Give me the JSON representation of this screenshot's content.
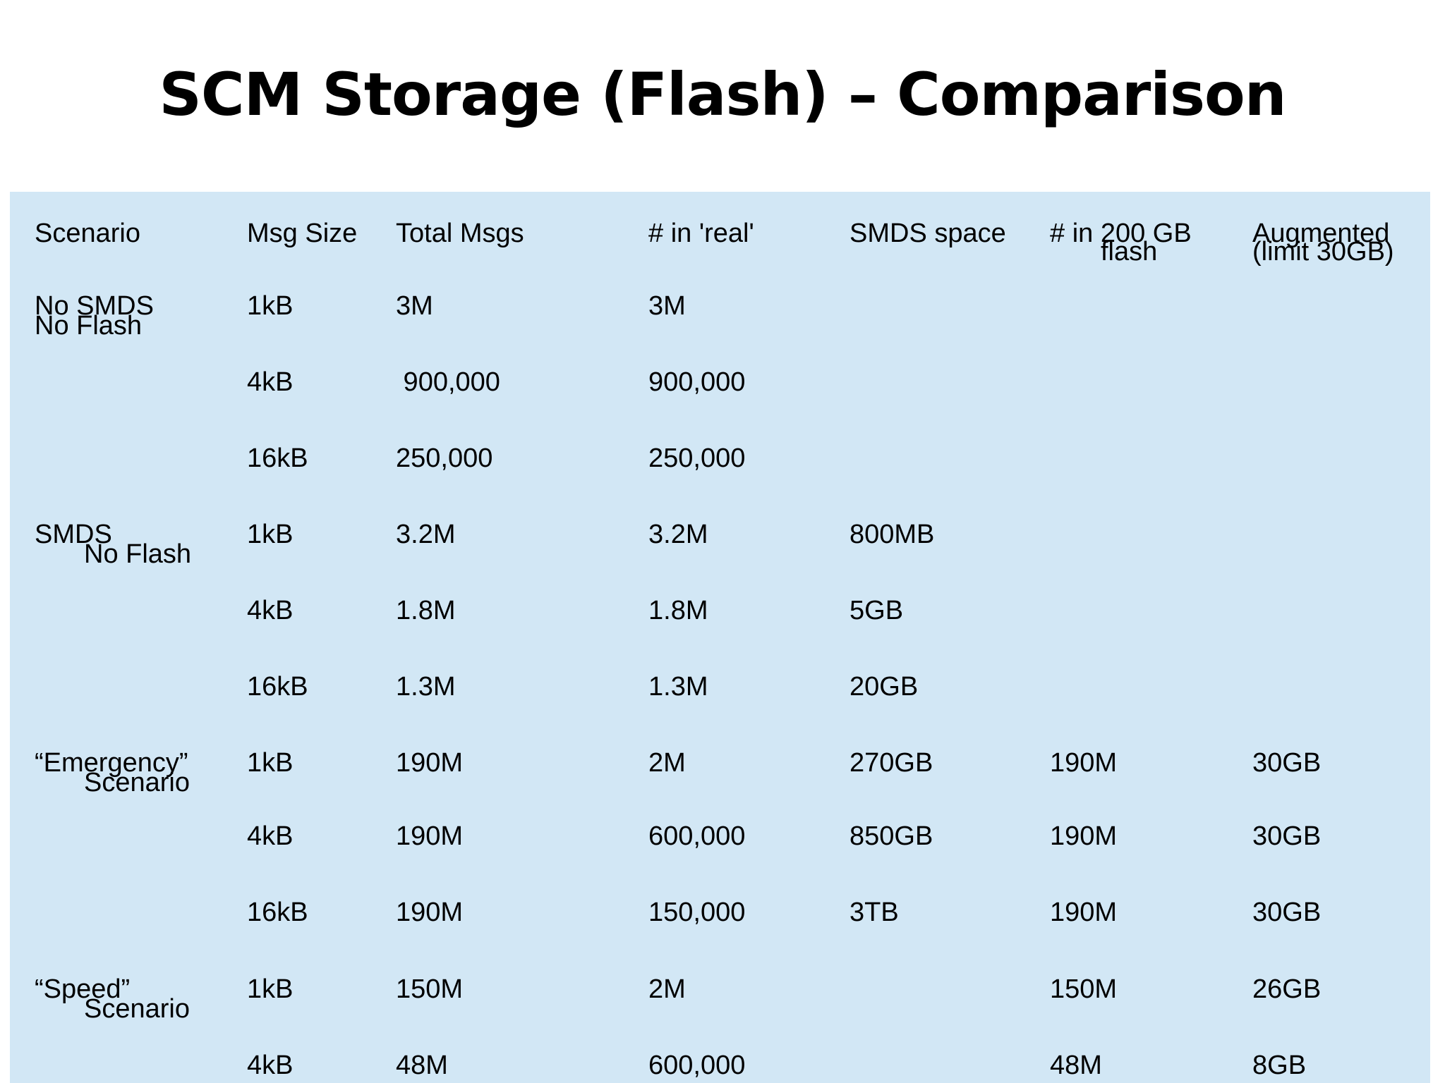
{
  "title": "SCM Storage (Flash) – Comparison",
  "headers": {
    "scenario": "Scenario",
    "msg_size": "Msg Size",
    "total_msgs": "Total Msgs",
    "in_real": "# in 'real'",
    "smds_space": "SMDS space",
    "in_flash_line1": "# in 200 GB",
    "in_flash_line2": "flash",
    "augmented_line1": "Augmented",
    "augmented_line2": "(limit 30GB)"
  },
  "groups": [
    {
      "line1": "No SMDS",
      "line2": "No Flash"
    },
    {
      "line1": "SMDS",
      "line2": "No Flash"
    },
    {
      "line1": "“Emergency”",
      "line2": "Scenario"
    },
    {
      "line1": "“Speed”",
      "line2": "Scenario"
    }
  ],
  "rows": [
    {
      "size": "1kB",
      "total": "3M",
      "real": "3M",
      "smds": "",
      "flash": "",
      "augmented": ""
    },
    {
      "size": "4kB",
      "total": " 900,000",
      "real": "900,000",
      "smds": "",
      "flash": "",
      "augmented": ""
    },
    {
      "size": "16kB",
      "total": "250,000",
      "real": "250,000",
      "smds": "",
      "flash": "",
      "augmented": ""
    },
    {
      "size": "1kB",
      "total": "3.2M",
      "real": "3.2M",
      "smds": "800MB",
      "flash": "",
      "augmented": ""
    },
    {
      "size": "4kB",
      "total": "1.8M",
      "real": "1.8M",
      "smds": "5GB",
      "flash": "",
      "augmented": ""
    },
    {
      "size": "16kB",
      "total": "1.3M",
      "real": "1.3M",
      "smds": "20GB",
      "flash": "",
      "augmented": ""
    },
    {
      "size": "1kB",
      "total": "190M",
      "real": "2M",
      "smds": "270GB",
      "flash": "190M",
      "augmented": "30GB"
    },
    {
      "size": "4kB",
      "total": "190M",
      "real": "600,000",
      "smds": "850GB",
      "flash": "190M",
      "augmented": "30GB"
    },
    {
      "size": "16kB",
      "total": "190M",
      "real": "150,000",
      "smds": "3TB",
      "flash": "190M",
      "augmented": "30GB"
    },
    {
      "size": "1kB",
      "total": "150M",
      "real": "2M",
      "smds": "",
      "flash": "150M",
      "augmented": "26GB"
    },
    {
      "size": "4kB",
      "total": "48M",
      "real": "600,000",
      "smds": "",
      "flash": "48M",
      "augmented": "8GB"
    }
  ]
}
